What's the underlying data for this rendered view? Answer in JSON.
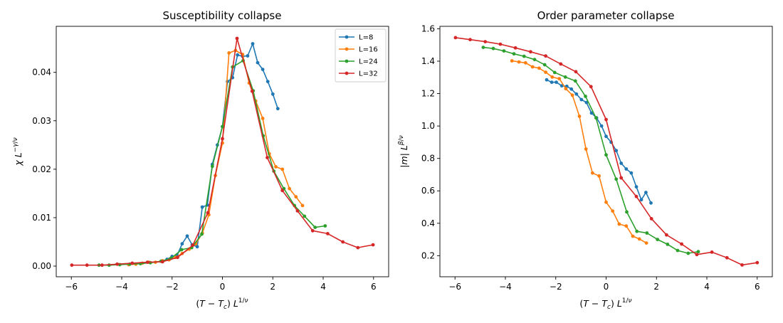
{
  "chart_data": [
    {
      "type": "line",
      "title": "Susceptibility collapse",
      "xlabel": "(T − T_c) L^{1/ν}",
      "ylabel": "χ L^{−γ/ν}",
      "xlim": [
        -6.6,
        6.6
      ],
      "ylim": [
        -0.0022,
        0.0495
      ],
      "xticks": [
        -6,
        -4,
        -2,
        0,
        2,
        4,
        6
      ],
      "xtick_labels": [
        "−6",
        "−4",
        "−2",
        "0",
        "2",
        "4",
        "6"
      ],
      "yticks": [
        0.0,
        0.01,
        0.02,
        0.03,
        0.04
      ],
      "ytick_labels": [
        "0.00",
        "0.01",
        "0.02",
        "0.03",
        "0.04"
      ],
      "legend": "top-right",
      "series": [
        {
          "name": "L=8",
          "color": "#1f77b4",
          "x": [
            -2.4,
            -2.2,
            -2.0,
            -1.8,
            -1.6,
            -1.4,
            -1.2,
            -1.0,
            -0.8,
            -0.6,
            -0.4,
            -0.2,
            0.0,
            0.2,
            0.4,
            0.6,
            0.8,
            1.0,
            1.2,
            1.4,
            1.6,
            1.8,
            2.0,
            2.2,
            2.4
          ],
          "y": [
            0.001,
            0.0014,
            0.002,
            0.0022,
            0.0046,
            0.0062,
            0.0044,
            0.004,
            0.0122,
            0.0126,
            0.021,
            0.025,
            0.0288,
            0.0381,
            0.0389,
            0.0436,
            0.0433,
            0.0434,
            0.0459,
            0.042,
            0.0406,
            0.0381,
            0.0355,
            0.0325,
            null
          ]
        },
        {
          "name": "L=16",
          "color": "#ff7f0e",
          "x": [
            -3.72,
            -3.44,
            -3.18,
            -2.92,
            -2.66,
            -2.38,
            -2.12,
            -1.86,
            -1.6,
            -1.32,
            -1.06,
            -0.8,
            -0.54,
            -0.28,
            0.0,
            0.26,
            0.52,
            0.8,
            1.06,
            1.32,
            1.6,
            1.86,
            2.12,
            2.38,
            2.66,
            2.92,
            3.18,
            3.46,
            3.72
          ],
          "y": [
            0.0003,
            0.0004,
            0.0006,
            0.0008,
            0.0008,
            0.0011,
            0.0013,
            0.0018,
            0.0026,
            0.0035,
            0.0046,
            0.0068,
            0.0106,
            0.0187,
            0.0254,
            0.044,
            0.0445,
            0.0437,
            0.0378,
            0.0341,
            0.0305,
            0.0232,
            0.0205,
            0.02,
            0.016,
            0.0143,
            0.0125,
            null,
            null
          ]
        },
        {
          "name": "L=24",
          "color": "#2ca02c",
          "x": [
            -4.9,
            -4.5,
            -4.08,
            -3.68,
            -3.26,
            -2.86,
            -2.44,
            -2.04,
            -1.62,
            -1.22,
            -0.82,
            -0.4,
            0.0,
            0.4,
            0.82,
            1.22,
            1.62,
            2.04,
            2.44,
            2.86,
            3.26,
            3.68,
            4.08,
            4.5,
            4.9
          ],
          "y": [
            0.0002,
            0.0002,
            0.0003,
            0.0004,
            0.0005,
            0.0007,
            0.001,
            0.0016,
            0.0034,
            0.0038,
            0.0066,
            0.0206,
            0.0288,
            0.0411,
            0.0424,
            0.0362,
            0.0269,
            0.0196,
            0.016,
            0.0125,
            0.0103,
            0.008,
            0.0083,
            null,
            null
          ]
        },
        {
          "name": "L=32",
          "color": "#d62728",
          "x": [
            -5.98,
            -5.38,
            -4.78,
            -4.18,
            -3.58,
            -2.98,
            -2.38,
            -1.78,
            -1.18,
            -0.58,
            0.0,
            0.58,
            1.18,
            1.78,
            2.38,
            2.98,
            3.58,
            4.18,
            4.78,
            5.38,
            5.98
          ],
          "y": [
            0.0002,
            0.0002,
            0.0002,
            0.0004,
            0.0006,
            0.0008,
            0.0009,
            0.0018,
            0.0043,
            0.011,
            0.0263,
            0.047,
            0.0361,
            0.0224,
            0.0156,
            0.0114,
            0.0073,
            0.0067,
            0.005,
            0.0038,
            0.0044
          ]
        }
      ]
    },
    {
      "type": "line",
      "title": "Order parameter collapse",
      "xlabel": "(T − T_c) L^{1/ν}",
      "ylabel": "|m| L^{β/ν}",
      "xlim": [
        -6.6,
        6.6
      ],
      "ylim": [
        0.07,
        1.615
      ],
      "xticks": [
        -6,
        -4,
        -2,
        0,
        2,
        4,
        6
      ],
      "xtick_labels": [
        "−6",
        "−4",
        "−2",
        "0",
        "2",
        "4",
        "6"
      ],
      "yticks": [
        0.2,
        0.4,
        0.6,
        0.8,
        1.0,
        1.2,
        1.4,
        1.6
      ],
      "ytick_labels": [
        "0.2",
        "0.4",
        "0.6",
        "0.8",
        "1.0",
        "1.2",
        "1.4",
        "1.6"
      ],
      "series": [
        {
          "name": "L=8",
          "color": "#1f77b4",
          "x": [
            -2.36,
            -2.16,
            -1.98,
            -1.76,
            -1.56,
            -1.38,
            -1.18,
            -0.98,
            -0.78,
            -0.58,
            -0.38,
            -0.18,
            0.0,
            0.2,
            0.4,
            0.6,
            0.8,
            1.0,
            1.2,
            1.4,
            1.58,
            1.78,
            1.98,
            2.18,
            2.38
          ],
          "y": [
            1.285,
            1.27,
            1.27,
            1.248,
            1.245,
            1.228,
            1.197,
            1.163,
            1.145,
            1.08,
            1.05,
            1.0,
            0.936,
            0.9,
            0.848,
            0.77,
            0.735,
            0.71,
            0.625,
            0.545,
            0.59,
            0.525,
            null,
            null,
            null
          ]
        },
        {
          "name": "L=16",
          "color": "#ff7f0e",
          "x": [
            -3.74,
            -3.46,
            -3.2,
            -2.92,
            -2.66,
            -2.4,
            -2.14,
            -1.86,
            -1.6,
            -1.34,
            -1.06,
            -0.8,
            -0.54,
            -0.28,
            0.0,
            0.26,
            0.52,
            0.8,
            1.06,
            1.32,
            1.6,
            1.86,
            2.12,
            2.4,
            2.66,
            2.92,
            3.2,
            3.46,
            3.74
          ],
          "y": [
            1.402,
            1.395,
            1.39,
            1.365,
            1.357,
            1.332,
            1.302,
            1.292,
            1.23,
            1.19,
            1.06,
            0.858,
            0.71,
            0.692,
            0.53,
            0.475,
            0.395,
            0.383,
            0.32,
            0.303,
            0.278,
            null,
            null,
            null,
            null,
            null,
            null,
            null,
            null
          ]
        },
        {
          "name": "L=24",
          "color": "#2ca02c",
          "x": [
            -4.88,
            -4.48,
            -4.06,
            -3.66,
            -3.26,
            -2.84,
            -2.44,
            -2.04,
            -1.62,
            -1.22,
            -0.82,
            -0.4,
            0.0,
            0.4,
            0.82,
            1.22,
            1.62,
            2.04,
            2.44,
            2.84,
            3.26,
            3.66,
            4.06,
            4.48,
            4.88
          ],
          "y": [
            1.485,
            1.478,
            1.463,
            1.445,
            1.43,
            1.41,
            1.378,
            1.33,
            1.302,
            1.278,
            1.183,
            1.05,
            0.822,
            0.672,
            0.47,
            0.35,
            0.34,
            0.3,
            0.27,
            0.232,
            0.215,
            0.225,
            null,
            null,
            null
          ]
        },
        {
          "name": "L=32",
          "color": "#d62728",
          "x": [
            -5.98,
            -5.4,
            -4.8,
            -4.2,
            -3.6,
            -3.0,
            -2.4,
            -1.8,
            -1.2,
            -0.6,
            0.0,
            0.6,
            1.2,
            1.8,
            2.4,
            3.0,
            3.6,
            4.2,
            4.8,
            5.4,
            6.0
          ],
          "y": [
            1.545,
            1.533,
            1.52,
            1.505,
            1.482,
            1.458,
            1.432,
            1.383,
            1.335,
            1.243,
            1.04,
            0.68,
            0.565,
            0.428,
            0.328,
            0.272,
            0.207,
            0.222,
            0.187,
            0.143,
            0.157
          ]
        }
      ]
    }
  ]
}
